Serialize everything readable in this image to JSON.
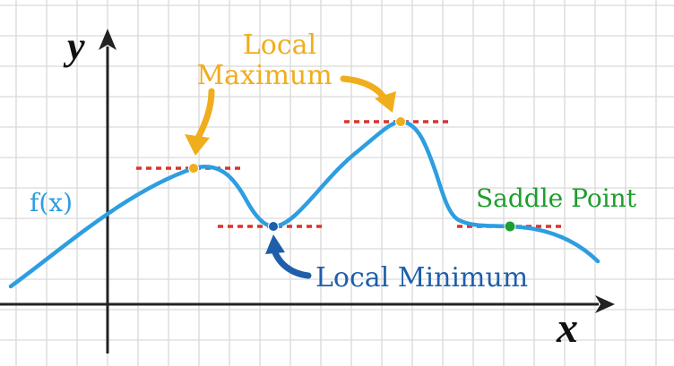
{
  "diagram": {
    "axis_x_label": "x",
    "axis_y_label": "y",
    "function_label": "f(x)",
    "local_maximum_label_line1": "Local",
    "local_maximum_label_line2": "Maximum",
    "local_minimum_label": "Local Minimum",
    "saddle_point_label": "Saddle Point"
  },
  "colors": {
    "grid": "#d9d9d9",
    "axis": "#222222",
    "curve": "#2d9ee0",
    "tangent": "#d9342b",
    "maximum": "#f0ad1c",
    "minimum": "#1f5faa",
    "saddle": "#1e9e2e",
    "background": "#ffffff"
  },
  "icons": {
    "x_axis_arrow": "arrow-right-icon",
    "y_axis_arrow": "arrow-up-icon",
    "max_pointer": "curved-arrow-down-icon",
    "min_pointer": "curved-arrow-up-icon"
  }
}
